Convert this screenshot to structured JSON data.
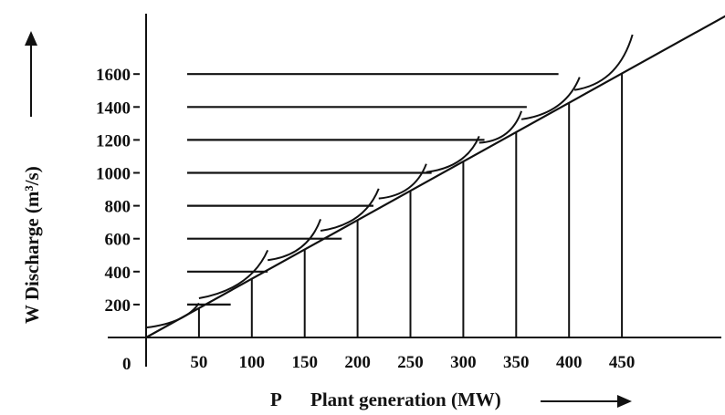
{
  "chart_data": {
    "type": "line",
    "title": "",
    "xlabel_symbol": "P",
    "xlabel": "Plant generation (MW)",
    "ylabel": "W Discharge (m³/s)",
    "origin_label": "0",
    "xlim": [
      0,
      550
    ],
    "ylim": [
      0,
      1800
    ],
    "xticks": [
      50,
      100,
      150,
      200,
      250,
      300,
      350,
      400,
      450
    ],
    "yticks": [
      200,
      400,
      600,
      800,
      1000,
      1200,
      1400,
      1600
    ],
    "grid": false,
    "series": [
      {
        "x": [
          0,
          550
        ],
        "y": [
          0,
          1960
        ]
      }
    ],
    "horizontal_levels": [
      {
        "y": 200,
        "x_end": 80
      },
      {
        "y": 400,
        "x_end": 115
      },
      {
        "y": 600,
        "x_end": 185
      },
      {
        "y": 800,
        "x_end": 215
      },
      {
        "y": 1000,
        "x_end": 270
      },
      {
        "y": 1200,
        "x_end": 320
      },
      {
        "y": 1400,
        "x_end": 360
      },
      {
        "y": 1600,
        "x_end": 390
      }
    ],
    "vertical_drops": [
      50,
      100,
      150,
      200,
      250,
      300,
      350,
      400,
      450
    ],
    "unit_curves": [
      {
        "x_start": 0,
        "x_end": 50,
        "y_rise": 30
      },
      {
        "x_start": 50,
        "x_end": 115,
        "y_rise": 120
      },
      {
        "x_start": 115,
        "x_end": 165,
        "y_rise": 130
      },
      {
        "x_start": 165,
        "x_end": 220,
        "y_rise": 120
      },
      {
        "x_start": 220,
        "x_end": 265,
        "y_rise": 110
      },
      {
        "x_start": 265,
        "x_end": 315,
        "y_rise": 100
      },
      {
        "x_start": 315,
        "x_end": 355,
        "y_rise": 110
      },
      {
        "x_start": 355,
        "x_end": 410,
        "y_rise": 120
      },
      {
        "x_start": 405,
        "x_end": 460,
        "y_rise": 200
      }
    ]
  }
}
